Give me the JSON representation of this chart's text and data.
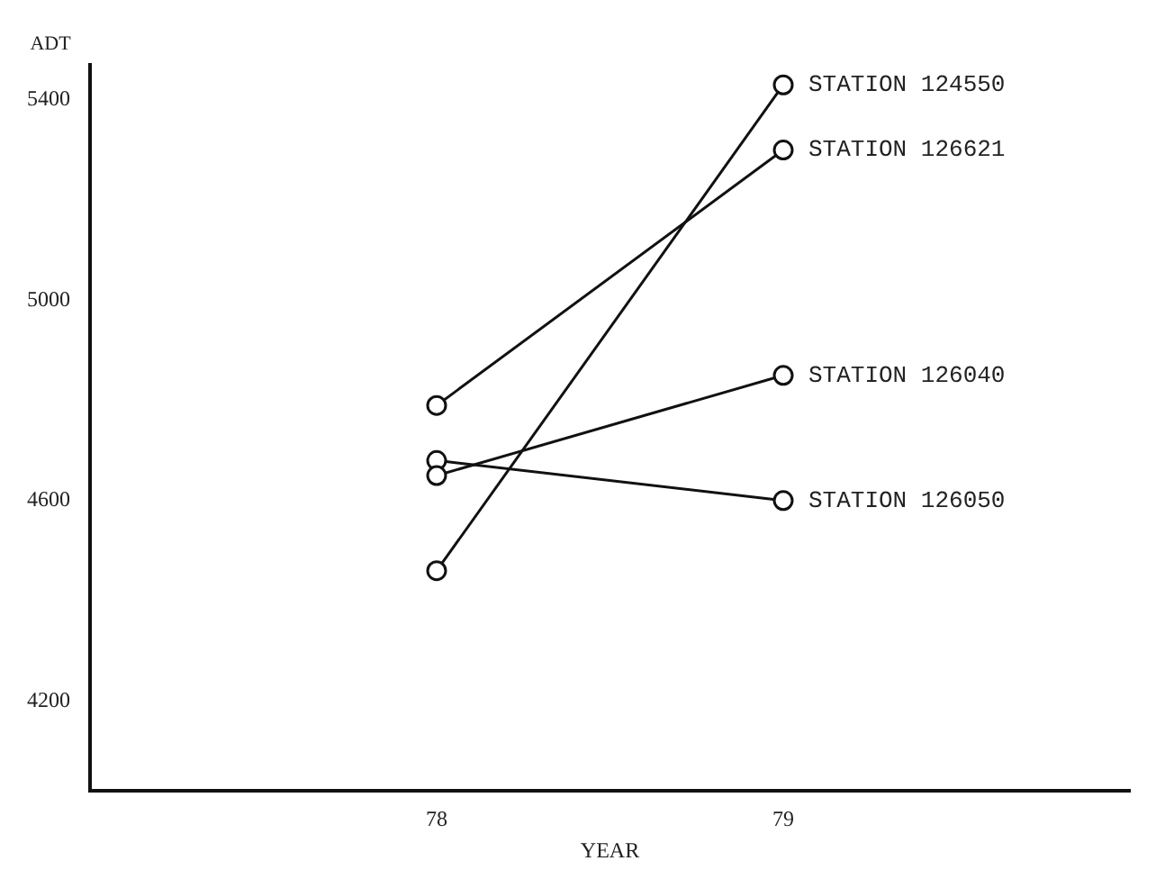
{
  "chart_data": {
    "type": "line",
    "xlabel": "YEAR",
    "ylabel": "ADT",
    "x": [
      78,
      79
    ],
    "series": [
      {
        "name": "STATION 124550",
        "color": "#111111",
        "values": [
          4460,
          5430
        ]
      },
      {
        "name": "STATION 126621",
        "color": "#111111",
        "values": [
          4790,
          5300
        ]
      },
      {
        "name": "STATION 126040",
        "color": "#111111",
        "values": [
          4650,
          4850
        ]
      },
      {
        "name": "STATION 126050",
        "color": "#111111",
        "values": [
          4680,
          4600
        ]
      }
    ],
    "xlim": [
      77,
      80
    ],
    "xticks": [
      78,
      79
    ],
    "ylim": [
      4020,
      5470
    ],
    "yticks": [
      4200,
      4600,
      5000,
      5400
    ],
    "grid": false,
    "legend": false,
    "marker": "circle",
    "line_style": "solid"
  }
}
